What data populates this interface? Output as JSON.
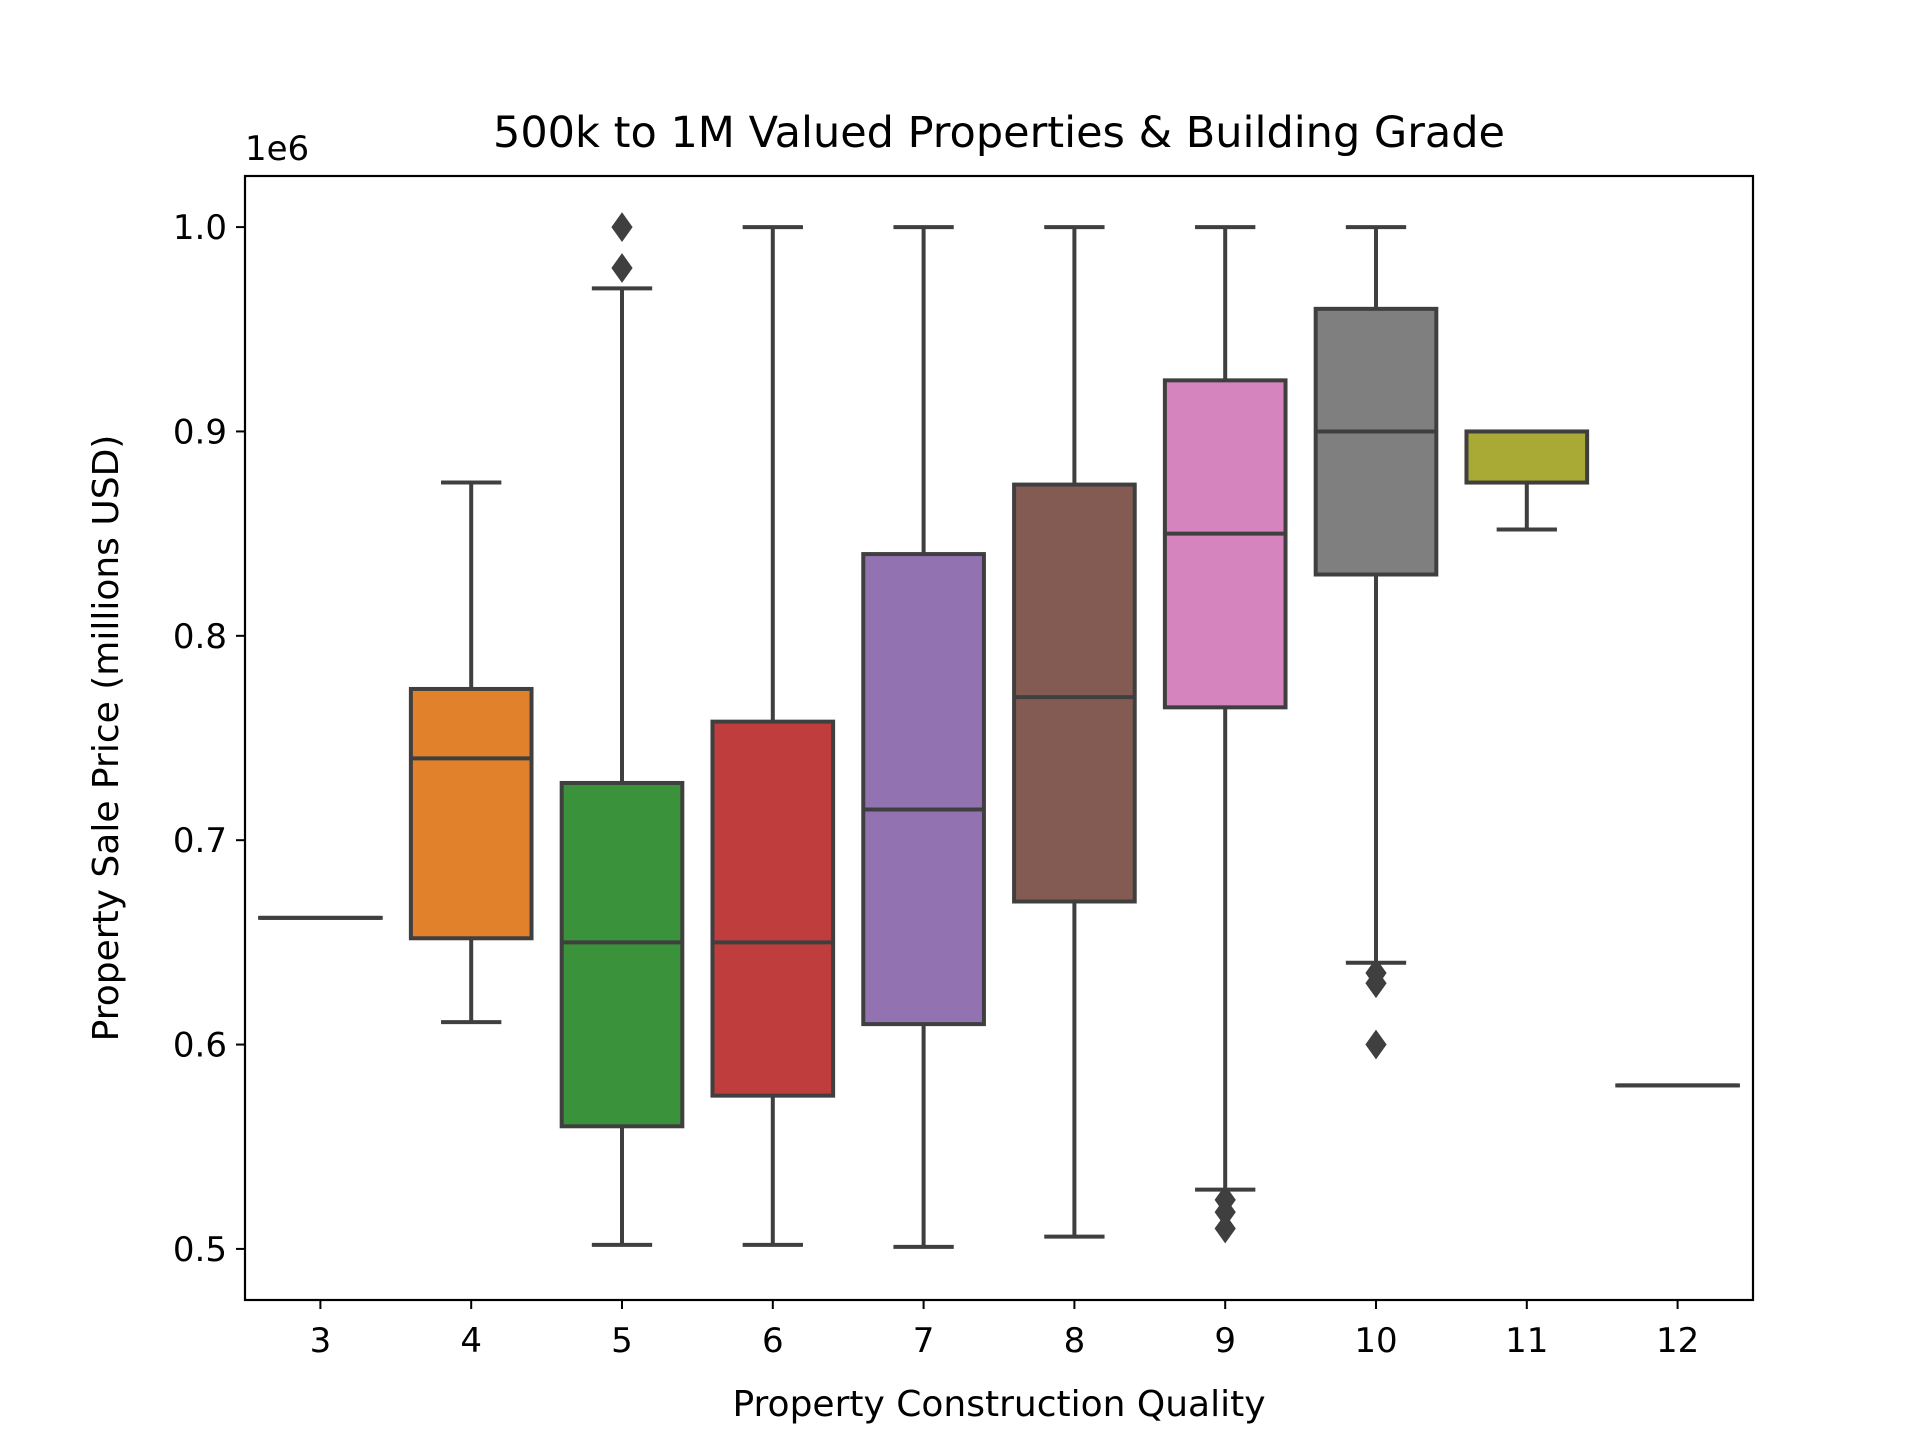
{
  "chart_data": {
    "type": "box",
    "title": "500k to 1M Valued Properties & Building Grade",
    "xlabel": "Property Construction Quality",
    "ylabel": "Property Sale Price (millions USD)",
    "y_offset_label": "1e6",
    "ylim": [
      475000,
      1025000
    ],
    "yticks": [
      500000,
      600000,
      700000,
      800000,
      900000,
      1000000
    ],
    "ytick_labels": [
      "0.5",
      "0.6",
      "0.7",
      "0.8",
      "0.9",
      "1.0"
    ],
    "grid": false,
    "line_color": "#3f3f3f",
    "categories": [
      "3",
      "4",
      "5",
      "6",
      "7",
      "8",
      "9",
      "10",
      "11",
      "12"
    ],
    "boxes": [
      {
        "category": "3",
        "color": "#3274a1",
        "whisker_low": 662000,
        "q1": 662000,
        "median": 662000,
        "q3": 662000,
        "whisker_high": 662000,
        "outliers": []
      },
      {
        "category": "4",
        "color": "#e1812c",
        "whisker_low": 611000,
        "q1": 652000,
        "median": 740000,
        "q3": 774000,
        "whisker_high": 875000,
        "outliers": []
      },
      {
        "category": "5",
        "color": "#3a923a",
        "whisker_low": 502000,
        "q1": 560000,
        "median": 650000,
        "q3": 728000,
        "whisker_high": 970000,
        "outliers": [
          980000,
          1000000
        ]
      },
      {
        "category": "6",
        "color": "#c03d3e",
        "whisker_low": 502000,
        "q1": 575000,
        "median": 650000,
        "q3": 758000,
        "whisker_high": 1000000,
        "outliers": []
      },
      {
        "category": "7",
        "color": "#9372b2",
        "whisker_low": 501000,
        "q1": 610000,
        "median": 715000,
        "q3": 840000,
        "whisker_high": 1000000,
        "outliers": []
      },
      {
        "category": "8",
        "color": "#845b53",
        "whisker_low": 506000,
        "q1": 670000,
        "median": 770000,
        "q3": 874000,
        "whisker_high": 1000000,
        "outliers": []
      },
      {
        "category": "9",
        "color": "#d684bd",
        "whisker_low": 529000,
        "q1": 765000,
        "median": 850000,
        "q3": 925000,
        "whisker_high": 1000000,
        "outliers": [
          510000,
          518000,
          524000
        ]
      },
      {
        "category": "10",
        "color": "#7f7f7f",
        "whisker_low": 640000,
        "q1": 830000,
        "median": 900000,
        "q3": 960000,
        "whisker_high": 1000000,
        "outliers": [
          600000,
          630000,
          635000
        ]
      },
      {
        "category": "11",
        "color": "#a9aa35",
        "whisker_low": 852000,
        "q1": 875000,
        "median": 900000,
        "q3": 900000,
        "whisker_high": 900000,
        "outliers": []
      },
      {
        "category": "12",
        "color": "#2e9fa9",
        "whisker_low": 580000,
        "q1": 580000,
        "median": 580000,
        "q3": 580000,
        "whisker_high": 580000,
        "outliers": []
      }
    ]
  }
}
